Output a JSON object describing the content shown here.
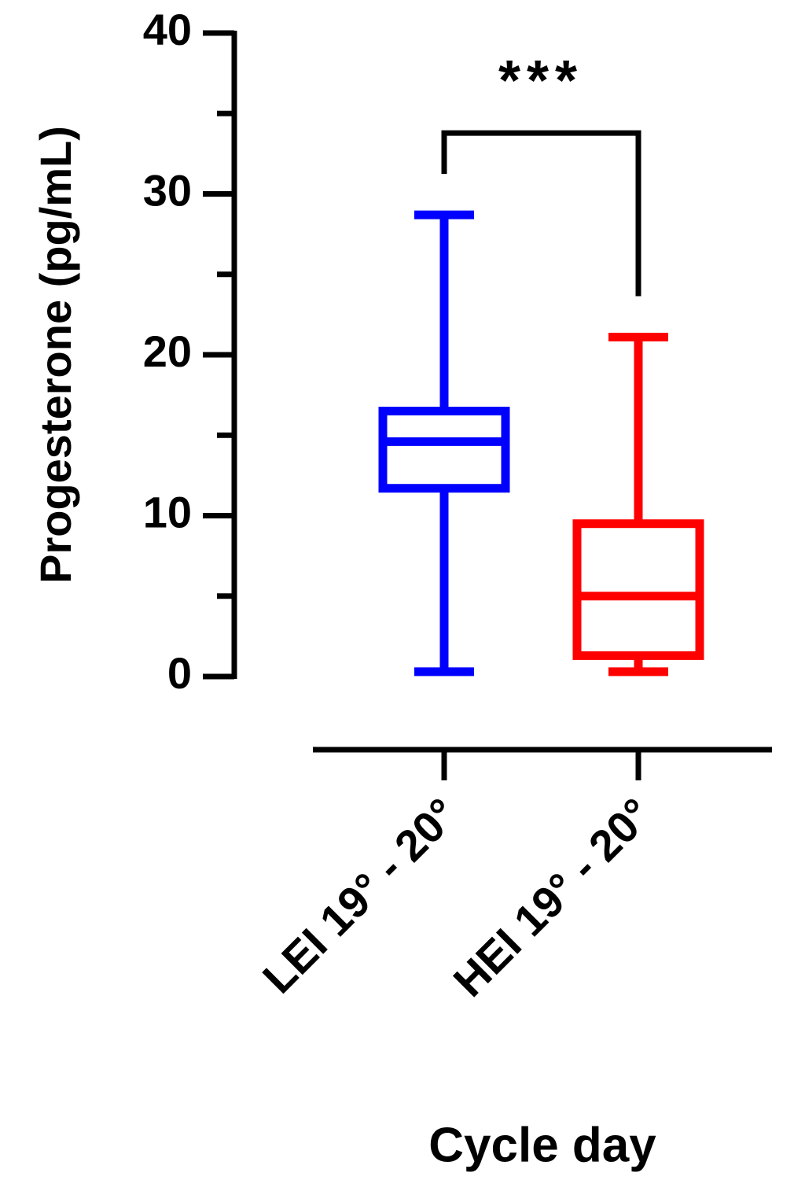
{
  "chart_data": {
    "type": "box",
    "ylabel": "Progesterone (pg/mL)",
    "xlabel": "Cycle day",
    "categories": [
      "LEI 19° - 20°",
      "HEI 19° - 20°"
    ],
    "boxes": [
      {
        "color": "#0000ff",
        "min": 0.3,
        "q1": 11.7,
        "median": 14.6,
        "q3": 16.5,
        "max": 28.7
      },
      {
        "color": "#ff0000",
        "min": 0.3,
        "q1": 1.3,
        "median": 5.0,
        "q3": 9.5,
        "max": 21.1
      }
    ],
    "ylim": [
      0,
      40
    ],
    "yticks": [
      0,
      10,
      20,
      30,
      40
    ],
    "yminorticks": [
      5,
      15,
      25,
      35
    ],
    "annotation": "***"
  }
}
